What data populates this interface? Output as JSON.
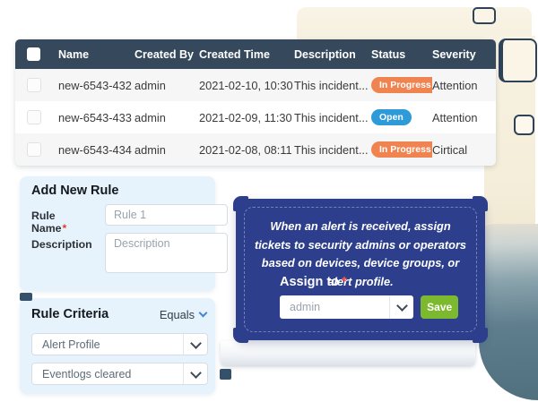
{
  "colors": {
    "table_header_bg": "#36495c",
    "sketch_outline": "#3c5a77",
    "panel_bg": "#e7f3fc",
    "card_bg": "#2c3e8c",
    "save_green": "#7cb92e",
    "badge_in_progress": "#f08450",
    "badge_open": "#2e9ad8",
    "paper_cream": "#f7f1e0",
    "watercolor_teal": "#5e7d8d",
    "required_red": "#e03e2d",
    "operator_chevron_blue": "#4285d3"
  },
  "table": {
    "columns": [
      "Name",
      "Created By",
      "Created Time",
      "Description",
      "Status",
      "Severity"
    ],
    "rows": [
      {
        "name": "new-6543-432",
        "created_by": "admin",
        "created_time": "2021-02-10, 10:30",
        "description": "This incident...",
        "status": "In Progress",
        "status_variant": "in-progress",
        "severity": "Attention"
      },
      {
        "name": "new-6543-433",
        "created_by": "admin",
        "created_time": "2021-02-09, 11:30",
        "description": "This incident...",
        "status": "Open",
        "status_variant": "open",
        "severity": "Attention"
      },
      {
        "name": "new-6543-434",
        "created_by": "admin",
        "created_time": "2021-02-08, 08:11",
        "description": "This incident...",
        "status": "In Progress",
        "status_variant": "in-progress",
        "severity": "Cirtical"
      }
    ]
  },
  "add_rule": {
    "title": "Add New Rule",
    "rule_name_label": "Rule Name",
    "required_mark": "*",
    "rule_name_placeholder": "Rule 1",
    "description_label": "Description",
    "description_placeholder": "Description"
  },
  "rule_criteria": {
    "title": "Rule Criteria",
    "operator": "Equals",
    "dropdown1": "Alert Profile",
    "dropdown2": "Eventlogs cleared"
  },
  "assign_card": {
    "message": "When an alert is received, assign tickets to security admins or operators based on devices, device groups, or alert profile.",
    "assign_label": "Assign to",
    "required_mark": "*",
    "assign_value": "admin",
    "save_label": "Save"
  },
  "decor": {
    "ellipsis": "..."
  }
}
